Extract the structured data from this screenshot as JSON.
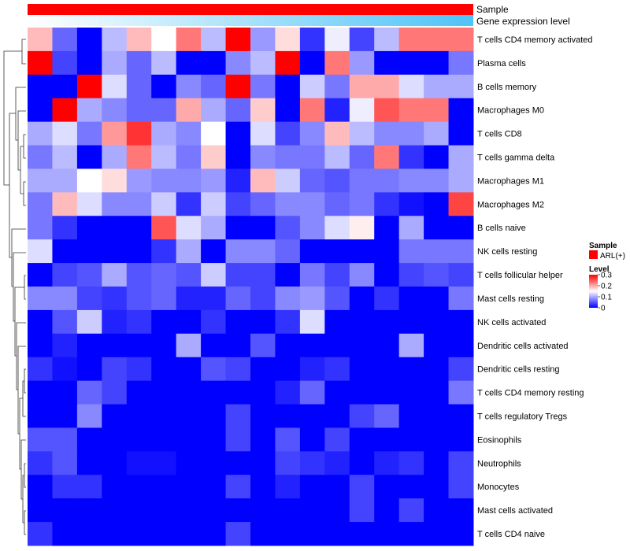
{
  "chart_data": {
    "type": "heatmap",
    "title": "",
    "annotation_rows": [
      {
        "label": "Sample",
        "kind": "categorical",
        "value": "ARL(+)",
        "color": "#ff0000"
      },
      {
        "label": "Gene expression level",
        "kind": "gradient",
        "from_color": "#ffffff",
        "to_color": "#4fc3f7"
      }
    ],
    "rows": [
      "T cells CD4 memory activated",
      "Plasma cells",
      "B cells memory",
      "Macrophages M0",
      "T cells CD8",
      "T cells gamma delta",
      "Macrophages M1",
      "Macrophages M2",
      "B cells naive",
      "NK cells resting",
      "T cells follicular helper",
      "Mast cells resting",
      "NK cells activated",
      "Dendritic cells activated",
      "Dendritic cells resting",
      "T cells CD4 memory resting",
      "T cells regulatory  Tregs",
      "Eosinophils",
      "Neutrophils",
      "Monocytes",
      "Mast cells activated",
      "T cells CD4 naive"
    ],
    "n_columns": 18,
    "values": [
      [
        0.19,
        0.06,
        0.0,
        0.11,
        0.19,
        0.15,
        0.23,
        0.11,
        0.3,
        0.09,
        0.17,
        0.03,
        0.14,
        0.04,
        0.11,
        0.23,
        0.23,
        0.23
      ],
      [
        0.3,
        0.04,
        0.0,
        0.1,
        0.06,
        0.11,
        0.0,
        0.0,
        0.08,
        0.11,
        0.3,
        0.0,
        0.23,
        0.09,
        0.0,
        0.0,
        0.0,
        0.07
      ],
      [
        0.0,
        0.0,
        0.3,
        0.13,
        0.06,
        0.0,
        0.08,
        0.06,
        0.3,
        0.07,
        0.0,
        0.12,
        0.07,
        0.2,
        0.2,
        0.13,
        0.1,
        0.1
      ],
      [
        0.0,
        0.3,
        0.1,
        0.08,
        0.06,
        0.06,
        0.2,
        0.1,
        0.06,
        0.18,
        0.0,
        0.23,
        0.02,
        0.14,
        0.25,
        0.23,
        0.23,
        0.0
      ],
      [
        0.1,
        0.13,
        0.07,
        0.21,
        0.27,
        0.1,
        0.08,
        0.15,
        0.0,
        0.13,
        0.04,
        0.08,
        0.19,
        0.11,
        0.08,
        0.08,
        0.1,
        0.0
      ],
      [
        0.07,
        0.11,
        0.0,
        0.1,
        0.23,
        0.11,
        0.07,
        0.18,
        0.0,
        0.08,
        0.07,
        0.07,
        0.11,
        0.06,
        0.23,
        0.03,
        0.0,
        0.1
      ],
      [
        0.1,
        0.1,
        0.15,
        0.17,
        0.09,
        0.08,
        0.08,
        0.09,
        0.02,
        0.19,
        0.12,
        0.06,
        0.05,
        0.07,
        0.07,
        0.08,
        0.08,
        0.1
      ],
      [
        0.07,
        0.19,
        0.13,
        0.08,
        0.08,
        0.12,
        0.03,
        0.12,
        0.04,
        0.06,
        0.08,
        0.08,
        0.06,
        0.07,
        0.03,
        0.01,
        0.0,
        0.26
      ],
      [
        0.07,
        0.03,
        0.0,
        0.0,
        0.0,
        0.25,
        0.13,
        0.1,
        0.0,
        0.0,
        0.05,
        0.08,
        0.13,
        0.16,
        0.0,
        0.1,
        0.0,
        0.0
      ],
      [
        0.13,
        0.0,
        0.0,
        0.0,
        0.0,
        0.03,
        0.1,
        0.0,
        0.08,
        0.08,
        0.06,
        0.0,
        0.0,
        0.0,
        0.0,
        0.07,
        0.07,
        0.07
      ],
      [
        0.0,
        0.04,
        0.05,
        0.1,
        0.05,
        0.06,
        0.05,
        0.12,
        0.04,
        0.04,
        0.0,
        0.07,
        0.04,
        0.08,
        0.0,
        0.04,
        0.05,
        0.04
      ],
      [
        0.08,
        0.08,
        0.04,
        0.03,
        0.05,
        0.06,
        0.02,
        0.02,
        0.06,
        0.04,
        0.08,
        0.09,
        0.05,
        0.0,
        0.03,
        0.0,
        0.0,
        0.07
      ],
      [
        0.0,
        0.05,
        0.12,
        0.02,
        0.03,
        0.0,
        0.0,
        0.03,
        0.0,
        0.0,
        0.03,
        0.13,
        0.0,
        0.0,
        0.0,
        0.0,
        0.0,
        0.0
      ],
      [
        0.0,
        0.02,
        0.0,
        0.0,
        0.0,
        0.0,
        0.1,
        0.0,
        0.0,
        0.05,
        0.0,
        0.0,
        0.0,
        0.0,
        0.0,
        0.1,
        0.0,
        0.0
      ],
      [
        0.03,
        0.01,
        0.0,
        0.04,
        0.03,
        0.0,
        0.0,
        0.05,
        0.04,
        0.0,
        0.0,
        0.02,
        0.03,
        0.0,
        0.0,
        0.0,
        0.0,
        0.04
      ],
      [
        0.0,
        0.0,
        0.06,
        0.04,
        0.0,
        0.0,
        0.0,
        0.0,
        0.0,
        0.0,
        0.02,
        0.06,
        0.0,
        0.0,
        0.0,
        0.0,
        0.0,
        0.07
      ],
      [
        0.0,
        0.0,
        0.08,
        0.0,
        0.0,
        0.0,
        0.0,
        0.0,
        0.04,
        0.0,
        0.0,
        0.0,
        0.0,
        0.04,
        0.06,
        0.0,
        0.0,
        0.0
      ],
      [
        0.05,
        0.05,
        0.0,
        0.0,
        0.0,
        0.0,
        0.0,
        0.0,
        0.04,
        0.0,
        0.05,
        0.0,
        0.04,
        0.0,
        0.0,
        0.0,
        0.0,
        0.0
      ],
      [
        0.03,
        0.05,
        0.0,
        0.0,
        0.01,
        0.01,
        0.0,
        0.0,
        0.0,
        0.0,
        0.04,
        0.03,
        0.02,
        0.0,
        0.02,
        0.03,
        0.0,
        0.04
      ],
      [
        0.0,
        0.03,
        0.03,
        0.0,
        0.0,
        0.0,
        0.0,
        0.0,
        0.04,
        0.0,
        0.02,
        0.0,
        0.0,
        0.04,
        0.0,
        0.0,
        0.0,
        0.04
      ],
      [
        0.0,
        0.0,
        0.0,
        0.0,
        0.0,
        0.0,
        0.0,
        0.0,
        0.0,
        0.0,
        0.0,
        0.0,
        0.0,
        0.04,
        0.0,
        0.04,
        0.0,
        0.0
      ],
      [
        0.03,
        0.0,
        0.0,
        0.0,
        0.0,
        0.0,
        0.0,
        0.0,
        0.04,
        0.0,
        0.0,
        0.0,
        0.0,
        0.0,
        0.0,
        0.0,
        0.0,
        0.0
      ]
    ],
    "color_scale": {
      "low": "#0000ff",
      "mid": "#ffffff",
      "high": "#ff0000",
      "domain": [
        0,
        0.3
      ],
      "mid_value": 0.15
    },
    "legend": {
      "sample_title": "Sample",
      "sample_item": "ARL(+)",
      "level_title": "Level",
      "level_ticks": [
        {
          "value": 0.3,
          "label": "0.3"
        },
        {
          "value": 0.2,
          "label": "0.2"
        },
        {
          "value": 0.1,
          "label": "0.1"
        },
        {
          "value": 0,
          "label": "0"
        }
      ],
      "position": "right"
    },
    "row_dendrogram": true
  }
}
